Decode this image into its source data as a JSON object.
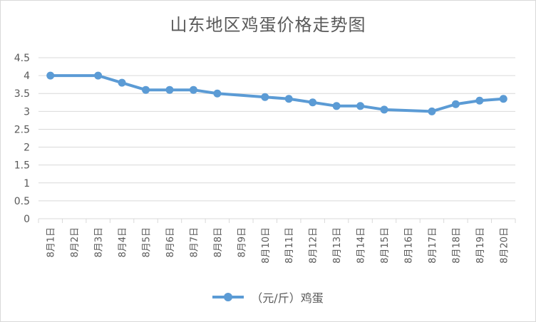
{
  "chart_data": {
    "type": "line",
    "title": "山东地区鸡蛋价格走势图",
    "categories": [
      "8月1日",
      "8月2日",
      "8月3日",
      "8月4日",
      "8月5日",
      "8月6日",
      "8月7日",
      "8月8日",
      "8月9日",
      "8月10日",
      "8月11日",
      "8月12日",
      "8月13日",
      "8月14日",
      "8月15日",
      "8月16日",
      "8月17日",
      "8月18日",
      "8月19日",
      "8月20日"
    ],
    "series": [
      {
        "name": "（元/斤）鸡蛋",
        "color": "#5b9bd5",
        "values": [
          4.0,
          null,
          4.0,
          3.8,
          3.6,
          3.6,
          3.6,
          3.5,
          null,
          3.4,
          3.35,
          3.25,
          3.15,
          3.15,
          3.05,
          null,
          3.0,
          3.2,
          3.3,
          3.35
        ]
      }
    ],
    "yticks": [
      "0",
      "0.5",
      "1",
      "1.5",
      "2",
      "2.5",
      "3",
      "3.5",
      "4",
      "4.5"
    ],
    "ylim": [
      0,
      4.5
    ],
    "grid": true,
    "legend_position": "bottom"
  }
}
